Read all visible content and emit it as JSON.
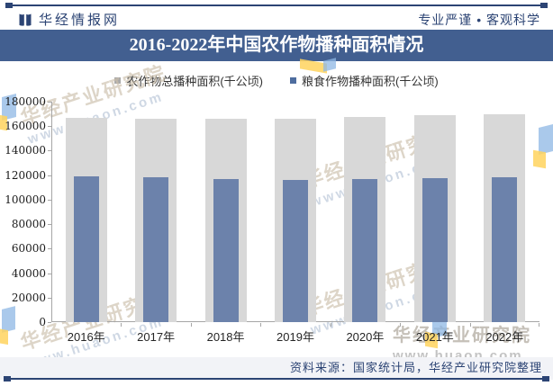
{
  "header": {
    "brand": "华经情报网",
    "slogan": "专业严谨 • 客观科学"
  },
  "title": "2016-2022年中国农作物播种面积情况",
  "chart_data": {
    "type": "bar",
    "title": "2016-2022年中国农作物播种面积情况",
    "categories": [
      "2016年",
      "2017年",
      "2018年",
      "2019年",
      "2020年",
      "2021年",
      "2022年"
    ],
    "series": [
      {
        "name": "农作物总播种面积(千公顷)",
        "color": "#d8d8d8",
        "marker_color": "#a9a9a9",
        "values": [
          166939,
          166332,
          165902,
          165931,
          167487,
          168695,
          169881
        ]
      },
      {
        "name": "粮食作物播种面积(千公顷)",
        "color": "#6c82ab",
        "marker_color": "#4e6d9f",
        "values": [
          119230,
          117989,
          117038,
          116064,
          116768,
          117630,
          118332
        ]
      }
    ],
    "xlabel": "",
    "ylabel": "",
    "ylim": [
      0,
      180000
    ],
    "ytick_step": 20000,
    "yticks": [
      0,
      20000,
      40000,
      60000,
      80000,
      100000,
      120000,
      140000,
      160000,
      180000
    ],
    "grid": false,
    "legend_position": "top"
  },
  "footer": {
    "source": "资料来源：国家统计局，华经产业研究院整理"
  },
  "watermark": {
    "line1": "华经产业研究院",
    "line2": "www.huaon.com"
  },
  "colors": {
    "accent_navy": "#2c4474",
    "banner_blue": "#425f90",
    "bar_gray": "#d8d8d8",
    "bar_blue": "#6c82ab",
    "axis_gray": "#a6a6a6",
    "footer_band": "#f2f3f7"
  }
}
